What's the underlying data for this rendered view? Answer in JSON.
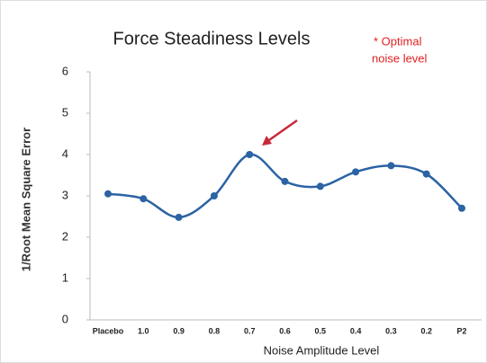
{
  "chart_data": {
    "type": "line",
    "title": "Force Steadiness Levels",
    "annotation": [
      "* Optimal",
      "noise level"
    ],
    "x_label": "Noise Amplitude Level",
    "y_label": "1/Root Mean Square Error",
    "categories": [
      "Placebo",
      "1.0",
      "0.9",
      "0.8",
      "0.7",
      "0.6",
      "0.5",
      "0.4",
      "0.3",
      "0.2",
      "P2"
    ],
    "series": [
      {
        "name": "Force Steadiness",
        "color": "#2b63a3",
        "values": [
          3.05,
          2.93,
          2.48,
          3.0,
          4.0,
          3.35,
          3.23,
          3.58,
          3.73,
          3.53,
          2.7
        ]
      }
    ],
    "ylim": [
      0,
      6
    ],
    "yticks": [
      0,
      1,
      2,
      3,
      4,
      5,
      6
    ],
    "grid": false
  }
}
